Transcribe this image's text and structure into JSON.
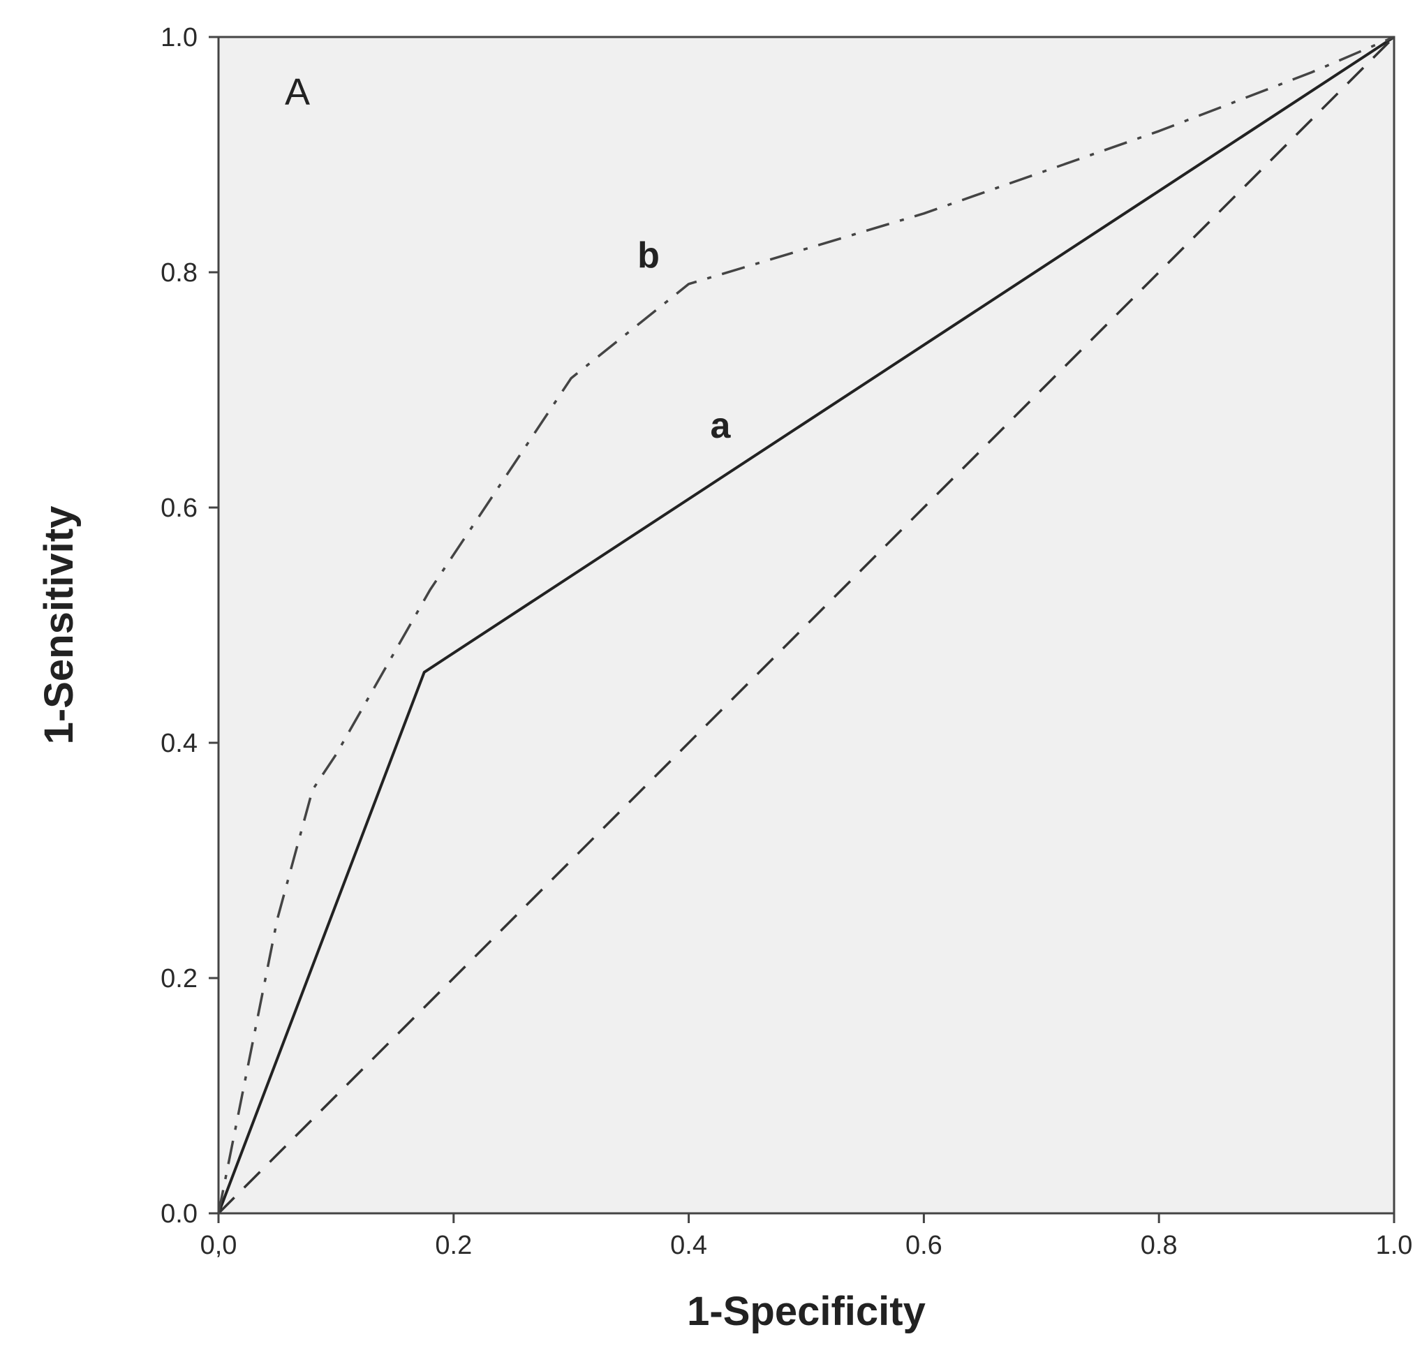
{
  "chart_data": {
    "type": "line",
    "panel_label": "A",
    "xlabel": "1-Specificity",
    "ylabel": "1-Sensitivity",
    "xlim": [
      0,
      1
    ],
    "ylim": [
      0,
      1
    ],
    "x_ticks": [
      0,
      0.2,
      0.4,
      0.6,
      0.8,
      1.0
    ],
    "x_tick_labels": [
      "0,0",
      "0.2",
      "0.4",
      "0.6",
      "0.8",
      "1.0"
    ],
    "y_ticks": [
      0,
      0.2,
      0.4,
      0.6,
      0.8,
      1.0
    ],
    "y_tick_labels": [
      "0.0",
      "0.2",
      "0.4",
      "0.6",
      "0.8",
      "1.0"
    ],
    "grid": false,
    "background_color": "#f0f0f0",
    "series": [
      {
        "name": "a",
        "style": "solid",
        "color": "#222222",
        "points": [
          [
            0,
            0
          ],
          [
            0.175,
            0.46
          ],
          [
            1.0,
            1.0
          ]
        ]
      },
      {
        "name": "b",
        "style": "dash-dot",
        "color": "#444444",
        "points": [
          [
            0,
            0
          ],
          [
            0.02,
            0.1
          ],
          [
            0.05,
            0.25
          ],
          [
            0.08,
            0.36
          ],
          [
            0.1,
            0.39
          ],
          [
            0.18,
            0.53
          ],
          [
            0.22,
            0.59
          ],
          [
            0.3,
            0.71
          ],
          [
            0.4,
            0.79
          ],
          [
            0.6,
            0.85
          ],
          [
            0.8,
            0.92
          ],
          [
            0.93,
            0.97
          ],
          [
            1.0,
            1.0
          ]
        ]
      },
      {
        "style": "dashed",
        "color": "#333333",
        "points": [
          [
            0,
            0
          ],
          [
            1.0,
            1.0
          ]
        ]
      }
    ]
  }
}
